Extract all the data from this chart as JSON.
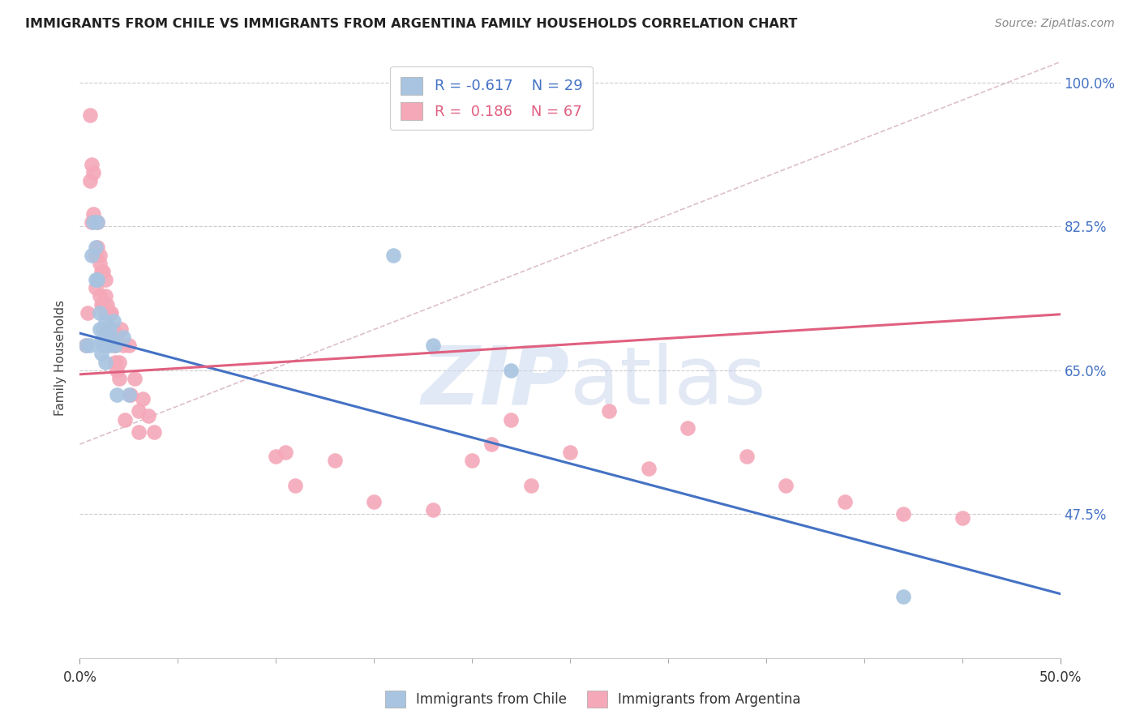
{
  "title": "IMMIGRANTS FROM CHILE VS IMMIGRANTS FROM ARGENTINA FAMILY HOUSEHOLDS CORRELATION CHART",
  "source": "Source: ZipAtlas.com",
  "ylabel": "Family Households",
  "xlim": [
    0.0,
    0.5
  ],
  "ylim": [
    0.3,
    1.03
  ],
  "xtick_labels_shown": [
    "0.0%",
    "50.0%"
  ],
  "xtick_vals_shown": [
    0.0,
    0.5
  ],
  "xtick_minor_vals": [
    0.05,
    0.1,
    0.15,
    0.2,
    0.25,
    0.3,
    0.35,
    0.4,
    0.45
  ],
  "ytick_labels": [
    "47.5%",
    "65.0%",
    "82.5%",
    "100.0%"
  ],
  "ytick_vals": [
    0.475,
    0.65,
    0.825,
    1.0
  ],
  "grid_color": "#cccccc",
  "background_color": "#ffffff",
  "chile_color": "#a8c4e0",
  "argentina_color": "#f4a8b8",
  "chile_line_color": "#4472c4",
  "argentina_line_color": "#e06080",
  "diagonal_line_color": "#d4b0c0",
  "chile_R": -0.617,
  "chile_N": 29,
  "argentina_R": 0.186,
  "argentina_N": 67,
  "watermark_zip": "ZIP",
  "watermark_atlas": "atlas",
  "chile_line_x": [
    0.0,
    0.5
  ],
  "chile_line_y": [
    0.695,
    0.378
  ],
  "argentina_line_x": [
    0.0,
    0.5
  ],
  "argentina_line_y": [
    0.645,
    0.718
  ],
  "diagonal_line_x": [
    0.0,
    0.5
  ],
  "diagonal_line_y": [
    0.56,
    1.025
  ],
  "chile_points_x": [
    0.003,
    0.005,
    0.006,
    0.007,
    0.008,
    0.008,
    0.009,
    0.009,
    0.01,
    0.01,
    0.011,
    0.011,
    0.012,
    0.012,
    0.013,
    0.013,
    0.014,
    0.015,
    0.015,
    0.016,
    0.017,
    0.018,
    0.019,
    0.022,
    0.025,
    0.16,
    0.18,
    0.22,
    0.42
  ],
  "chile_points_y": [
    0.68,
    0.68,
    0.79,
    0.83,
    0.76,
    0.8,
    0.83,
    0.76,
    0.7,
    0.72,
    0.685,
    0.67,
    0.7,
    0.68,
    0.71,
    0.66,
    0.69,
    0.7,
    0.68,
    0.69,
    0.71,
    0.68,
    0.62,
    0.69,
    0.62,
    0.79,
    0.68,
    0.65,
    0.375
  ],
  "argentina_points_x": [
    0.003,
    0.004,
    0.005,
    0.005,
    0.006,
    0.006,
    0.007,
    0.007,
    0.008,
    0.008,
    0.009,
    0.009,
    0.009,
    0.01,
    0.01,
    0.01,
    0.011,
    0.011,
    0.012,
    0.012,
    0.013,
    0.013,
    0.013,
    0.014,
    0.014,
    0.015,
    0.015,
    0.016,
    0.016,
    0.017,
    0.017,
    0.018,
    0.018,
    0.019,
    0.019,
    0.02,
    0.02,
    0.021,
    0.022,
    0.023,
    0.025,
    0.026,
    0.028,
    0.03,
    0.03,
    0.032,
    0.035,
    0.038,
    0.1,
    0.105,
    0.11,
    0.13,
    0.15,
    0.18,
    0.2,
    0.21,
    0.22,
    0.23,
    0.25,
    0.27,
    0.29,
    0.31,
    0.34,
    0.36,
    0.39,
    0.42,
    0.45
  ],
  "argentina_points_y": [
    0.68,
    0.72,
    0.96,
    0.88,
    0.9,
    0.83,
    0.89,
    0.84,
    0.79,
    0.75,
    0.83,
    0.8,
    0.76,
    0.79,
    0.78,
    0.74,
    0.77,
    0.73,
    0.77,
    0.73,
    0.76,
    0.74,
    0.72,
    0.73,
    0.7,
    0.72,
    0.69,
    0.72,
    0.7,
    0.7,
    0.68,
    0.68,
    0.66,
    0.69,
    0.65,
    0.66,
    0.64,
    0.7,
    0.68,
    0.59,
    0.68,
    0.62,
    0.64,
    0.6,
    0.575,
    0.615,
    0.595,
    0.575,
    0.545,
    0.55,
    0.51,
    0.54,
    0.49,
    0.48,
    0.54,
    0.56,
    0.59,
    0.51,
    0.55,
    0.6,
    0.53,
    0.58,
    0.545,
    0.51,
    0.49,
    0.475,
    0.47
  ]
}
